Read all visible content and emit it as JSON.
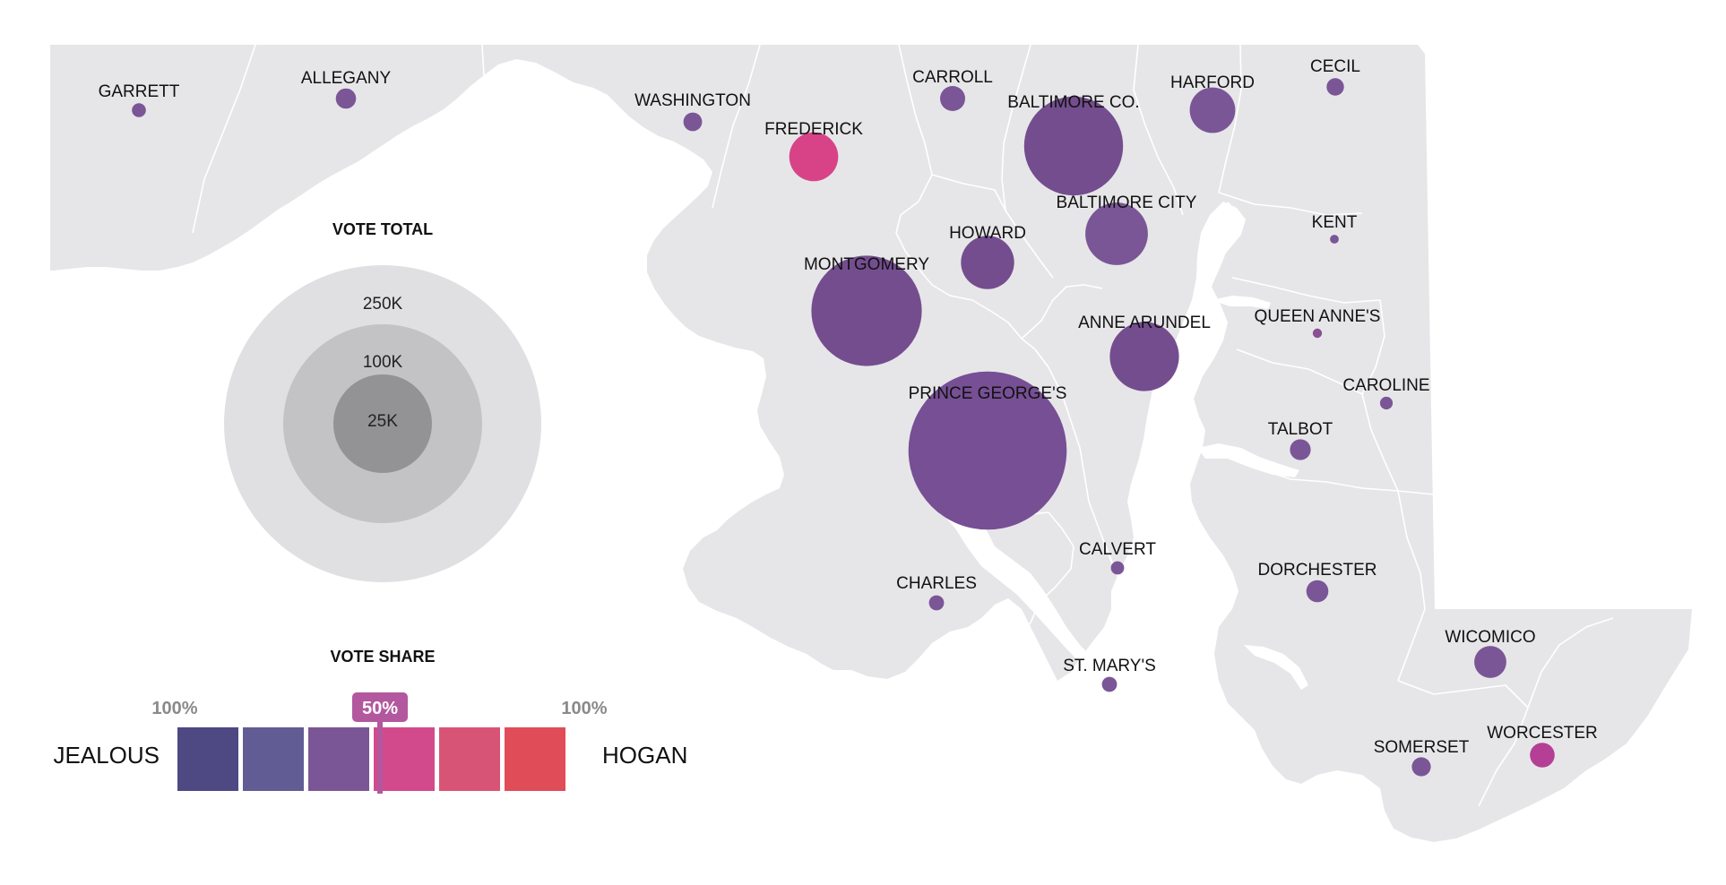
{
  "legend": {
    "vote_total_title": "VOTE TOTAL",
    "rings": [
      {
        "label": "250K",
        "value": 250000,
        "color": "#e0e0e2"
      },
      {
        "label": "100K",
        "value": 100000,
        "color": "#c3c3c5"
      },
      {
        "label": "25K",
        "value": 25000,
        "color": "#939395"
      }
    ],
    "vote_share_title": "VOTE SHARE",
    "left_pct": "100%",
    "right_pct": "100%",
    "mid_marker": "50%",
    "left_candidate": "JEALOUS",
    "right_candidate": "HOGAN",
    "scale_colors": [
      "#4e4983",
      "#625c94",
      "#7b5696",
      "#d34a8c",
      "#d85477",
      "#e04c58"
    ],
    "marker_color": "#b3579e"
  },
  "colors": {
    "map_fill": "#e6e6e8",
    "border": "#ffffff",
    "water": "#ffffff"
  },
  "counties": [
    {
      "name": "GARRETT",
      "color": "#7b5696",
      "votes": 1800
    },
    {
      "name": "ALLEGANY",
      "color": "#7b5696",
      "votes": 3800
    },
    {
      "name": "WASHINGTON",
      "color": "#7b5696",
      "votes": 3200
    },
    {
      "name": "FREDERICK",
      "color": "#d84387",
      "votes": 22000
    },
    {
      "name": "CARROLL",
      "color": "#7b5696",
      "votes": 5800
    },
    {
      "name": "BALTIMORE CO.",
      "color": "#744d8f",
      "votes": 90000
    },
    {
      "name": "HARFORD",
      "color": "#7b5696",
      "votes": 19000
    },
    {
      "name": "CECIL",
      "color": "#7b5696",
      "votes": 2800
    },
    {
      "name": "BALTIMORE CITY",
      "color": "#7b5696",
      "votes": 36000
    },
    {
      "name": "KENT",
      "color": "#7b5696",
      "votes": 700
    },
    {
      "name": "HOWARD",
      "color": "#744d8f",
      "votes": 26000
    },
    {
      "name": "MONTGOMERY",
      "color": "#744d8f",
      "votes": 112000
    },
    {
      "name": "ANNE ARUNDEL",
      "color": "#744d8f",
      "votes": 44000
    },
    {
      "name": "QUEEN ANNE'S",
      "color": "#8b4f95",
      "votes": 800
    },
    {
      "name": "CAROLINE",
      "color": "#7b5696",
      "votes": 1500
    },
    {
      "name": "TALBOT",
      "color": "#7b5696",
      "votes": 4000
    },
    {
      "name": "PRINCE GEORGE'S",
      "color": "#774f94",
      "votes": 230000
    },
    {
      "name": "CALVERT",
      "color": "#7b5696",
      "votes": 1600
    },
    {
      "name": "CHARLES",
      "color": "#7b5696",
      "votes": 2100
    },
    {
      "name": "DORCHESTER",
      "color": "#7b5696",
      "votes": 4500
    },
    {
      "name": "ST. MARY'S",
      "color": "#7b5696",
      "votes": 2100
    },
    {
      "name": "WICOMICO",
      "color": "#7b5696",
      "votes": 9500
    },
    {
      "name": "SOMERSET",
      "color": "#7b5696",
      "votes": 3300
    },
    {
      "name": "WORCESTER",
      "color": "#b43f95",
      "votes": 5600
    }
  ]
}
